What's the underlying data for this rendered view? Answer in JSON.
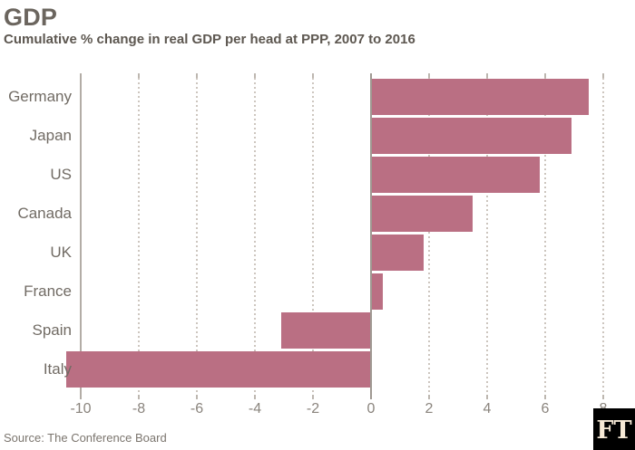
{
  "header": {
    "title": "GDP",
    "subtitle": "Cumulative % change in real GDP per head at PPP, 2007 to 2016"
  },
  "chart_data": {
    "type": "bar",
    "orientation": "horizontal",
    "title": "GDP",
    "subtitle": "Cumulative % change in real GDP per head at PPP, 2007 to 2016",
    "categories": [
      "Germany",
      "Japan",
      "US",
      "Canada",
      "UK",
      "France",
      "Spain",
      "Italy"
    ],
    "values": [
      7.5,
      6.9,
      5.8,
      3.5,
      1.8,
      0.4,
      -3.1,
      -10.5
    ],
    "x_ticks": [
      -10,
      -8,
      -6,
      -4,
      -2,
      0,
      2,
      4,
      6,
      8
    ],
    "xlim": [
      -10.5,
      8.5
    ],
    "xlabel": "",
    "ylabel": "",
    "grid": "vertical-dotted",
    "legend": "none",
    "bar_color": "#ba6f83"
  },
  "footer": {
    "source": "Source: The Conference Board",
    "logo": "FT"
  },
  "colors": {
    "background": "#ffffff",
    "bar": "#ba6f83",
    "zero_line": "#9f9992",
    "gridline": "#cdc6bf",
    "title_text": "#6b655e",
    "axis_text": "#8a847d",
    "logo_bg": "#000000",
    "logo_text": "#f6e9d6"
  }
}
